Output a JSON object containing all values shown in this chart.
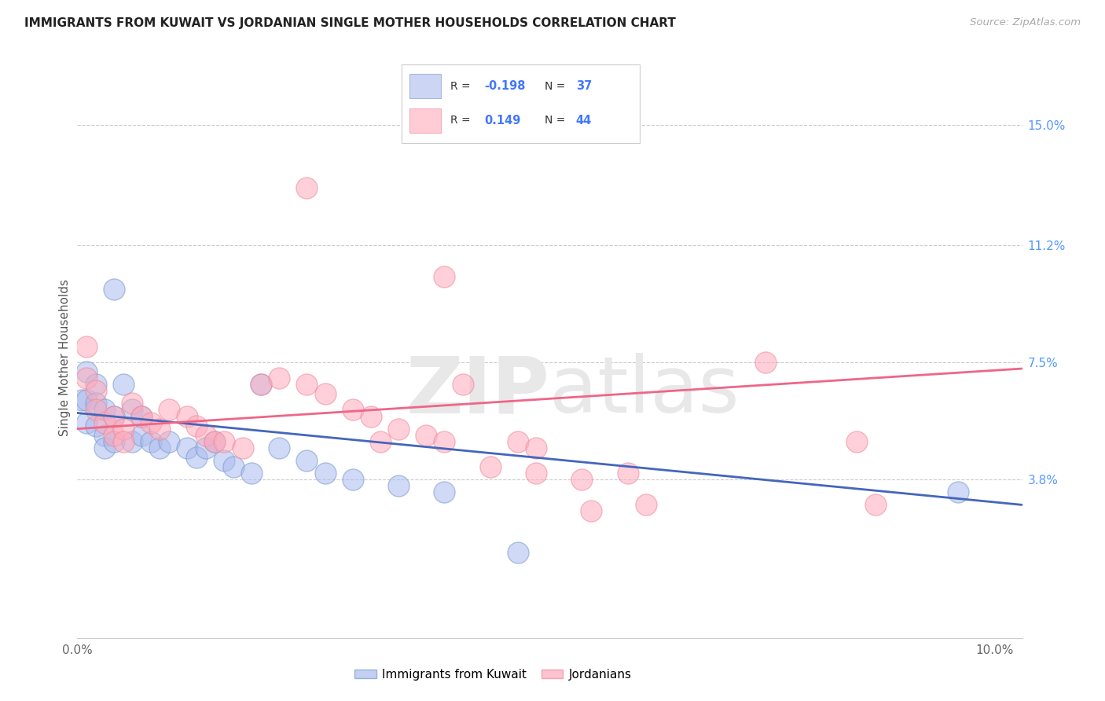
{
  "title": "IMMIGRANTS FROM KUWAIT VS JORDANIAN SINGLE MOTHER HOUSEHOLDS CORRELATION CHART",
  "source": "Source: ZipAtlas.com",
  "ylabel": "Single Mother Households",
  "xlim": [
    0.0,
    0.103
  ],
  "ylim": [
    -0.012,
    0.165
  ],
  "xtick_vals": [
    0.0,
    0.1
  ],
  "xtick_labels": [
    "0.0%",
    "10.0%"
  ],
  "ytick_positions": [
    0.038,
    0.075,
    0.112,
    0.15
  ],
  "ytick_labels": [
    "3.8%",
    "7.5%",
    "11.2%",
    "15.0%"
  ],
  "blue_r_str": "-0.198",
  "blue_n_str": "37",
  "pink_r_str": "0.149",
  "pink_n_str": "44",
  "blue_fill": "#AABBEE",
  "blue_edge": "#7799CC",
  "pink_fill": "#FFAABB",
  "pink_edge": "#EE8899",
  "blue_line": "#4466BB",
  "pink_line": "#EE6688",
  "right_tick_color": "#5599FF",
  "legend_val_color": "#4477FF",
  "title_color": "#222222",
  "source_color": "#AAAAAA",
  "grid_color": "#CCCCCC",
  "legend_label_blue": "Immigrants from Kuwait",
  "legend_label_pink": "Jordanians",
  "blue_points": [
    [
      0.0005,
      0.063
    ],
    [
      0.001,
      0.072
    ],
    [
      0.001,
      0.063
    ],
    [
      0.001,
      0.056
    ],
    [
      0.002,
      0.068
    ],
    [
      0.002,
      0.062
    ],
    [
      0.002,
      0.055
    ],
    [
      0.003,
      0.06
    ],
    [
      0.003,
      0.052
    ],
    [
      0.003,
      0.048
    ],
    [
      0.004,
      0.058
    ],
    [
      0.004,
      0.05
    ],
    [
      0.004,
      0.098
    ],
    [
      0.005,
      0.068
    ],
    [
      0.006,
      0.06
    ],
    [
      0.006,
      0.05
    ],
    [
      0.007,
      0.058
    ],
    [
      0.007,
      0.052
    ],
    [
      0.008,
      0.05
    ],
    [
      0.009,
      0.048
    ],
    [
      0.01,
      0.05
    ],
    [
      0.012,
      0.048
    ],
    [
      0.013,
      0.045
    ],
    [
      0.014,
      0.048
    ],
    [
      0.015,
      0.05
    ],
    [
      0.016,
      0.044
    ],
    [
      0.017,
      0.042
    ],
    [
      0.019,
      0.04
    ],
    [
      0.02,
      0.068
    ],
    [
      0.022,
      0.048
    ],
    [
      0.025,
      0.044
    ],
    [
      0.027,
      0.04
    ],
    [
      0.03,
      0.038
    ],
    [
      0.035,
      0.036
    ],
    [
      0.04,
      0.034
    ],
    [
      0.048,
      0.015
    ],
    [
      0.096,
      0.034
    ]
  ],
  "pink_points": [
    [
      0.001,
      0.08
    ],
    [
      0.001,
      0.07
    ],
    [
      0.002,
      0.066
    ],
    [
      0.002,
      0.06
    ],
    [
      0.003,
      0.056
    ],
    [
      0.004,
      0.058
    ],
    [
      0.004,
      0.052
    ],
    [
      0.005,
      0.054
    ],
    [
      0.005,
      0.05
    ],
    [
      0.006,
      0.062
    ],
    [
      0.007,
      0.058
    ],
    [
      0.008,
      0.056
    ],
    [
      0.009,
      0.054
    ],
    [
      0.01,
      0.06
    ],
    [
      0.012,
      0.058
    ],
    [
      0.013,
      0.055
    ],
    [
      0.014,
      0.052
    ],
    [
      0.015,
      0.05
    ],
    [
      0.016,
      0.05
    ],
    [
      0.018,
      0.048
    ],
    [
      0.02,
      0.068
    ],
    [
      0.022,
      0.07
    ],
    [
      0.025,
      0.068
    ],
    [
      0.025,
      0.13
    ],
    [
      0.027,
      0.065
    ],
    [
      0.03,
      0.06
    ],
    [
      0.032,
      0.058
    ],
    [
      0.033,
      0.05
    ],
    [
      0.035,
      0.054
    ],
    [
      0.038,
      0.052
    ],
    [
      0.04,
      0.05
    ],
    [
      0.04,
      0.102
    ],
    [
      0.042,
      0.068
    ],
    [
      0.045,
      0.042
    ],
    [
      0.048,
      0.05
    ],
    [
      0.05,
      0.048
    ],
    [
      0.05,
      0.04
    ],
    [
      0.055,
      0.038
    ],
    [
      0.056,
      0.028
    ],
    [
      0.06,
      0.04
    ],
    [
      0.062,
      0.03
    ],
    [
      0.075,
      0.075
    ],
    [
      0.085,
      0.05
    ],
    [
      0.087,
      0.03
    ]
  ],
  "blue_line_pts": [
    [
      0.0,
      0.059
    ],
    [
      0.103,
      0.03
    ]
  ],
  "pink_line_pts": [
    [
      0.0,
      0.054
    ],
    [
      0.103,
      0.073
    ]
  ]
}
